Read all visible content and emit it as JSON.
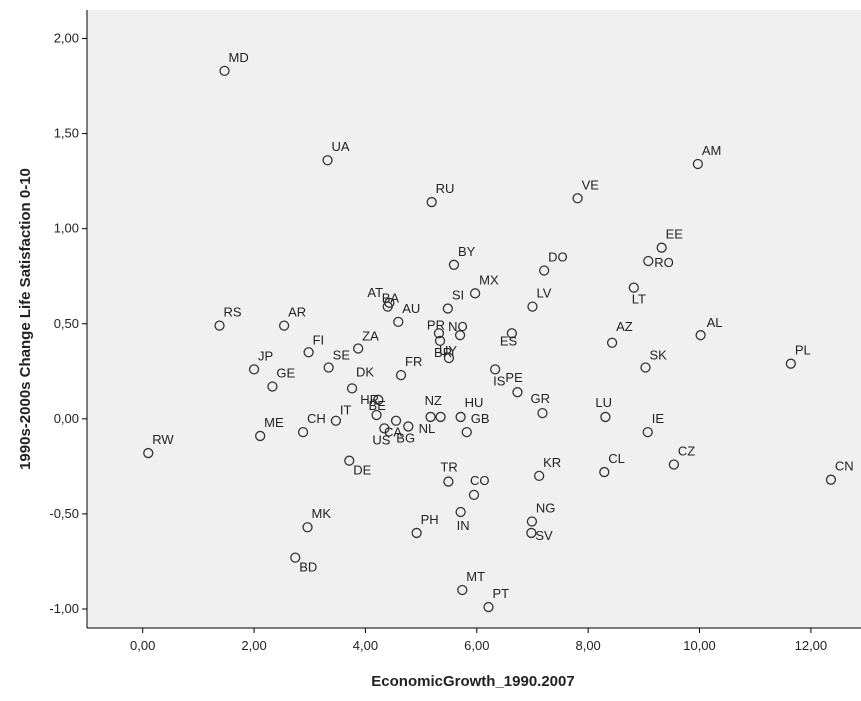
{
  "chart_data": {
    "type": "scatter",
    "xlabel": "EconomicGrowth_1990.2007",
    "ylabel": "1990s-2000s Change Life Satisfaction 0-10",
    "xlim": [
      -1.0,
      12.9
    ],
    "ylim": [
      -1.1,
      2.15
    ],
    "x_ticks": [
      0,
      2,
      4,
      6,
      8,
      10,
      12
    ],
    "x_tick_labels": [
      "0,00",
      "2,00",
      "4,00",
      "6,00",
      "8,00",
      "10,00",
      "12,00"
    ],
    "y_ticks": [
      -1,
      -0.5,
      0,
      0.5,
      1,
      1.5,
      2
    ],
    "y_tick_labels": [
      "-1,00",
      "-0,50",
      "0,00",
      "0,50",
      "1,00",
      "1,50",
      "2,00"
    ],
    "grid": false,
    "colors": {
      "plot_background": "#f0f0f0",
      "marker_stroke": "#333333",
      "axis": "#000000"
    },
    "points": [
      {
        "label": "MD",
        "x": 1.47,
        "y": 1.83
      },
      {
        "label": "UA",
        "x": 3.32,
        "y": 1.36
      },
      {
        "label": "RU",
        "x": 5.19,
        "y": 1.14
      },
      {
        "label": "VE",
        "x": 7.81,
        "y": 1.16
      },
      {
        "label": "AM",
        "x": 9.97,
        "y": 1.34
      },
      {
        "label": "BY",
        "x": 5.59,
        "y": 0.81
      },
      {
        "label": "DO",
        "x": 7.21,
        "y": 0.78
      },
      {
        "label": "EE",
        "x": 9.32,
        "y": 0.9
      },
      {
        "label": "RO",
        "x": 9.08,
        "y": 0.83
      },
      {
        "label": "MX",
        "x": 5.97,
        "y": 0.66
      },
      {
        "label": "LV",
        "x": 7.0,
        "y": 0.59
      },
      {
        "label": "LT",
        "x": 8.82,
        "y": 0.69
      },
      {
        "label": "AT",
        "x": 4.43,
        "y": 0.61
      },
      {
        "label": "BA",
        "x": 4.4,
        "y": 0.59
      },
      {
        "label": "SI",
        "x": 5.48,
        "y": 0.58
      },
      {
        "label": "RS",
        "x": 1.38,
        "y": 0.49
      },
      {
        "label": "AR",
        "x": 2.54,
        "y": 0.49
      },
      {
        "label": "AU",
        "x": 4.59,
        "y": 0.51
      },
      {
        "label": "PR",
        "x": 5.32,
        "y": 0.45
      },
      {
        "label": "NO",
        "x": 5.7,
        "y": 0.44
      },
      {
        "label": "AZ",
        "x": 8.43,
        "y": 0.4
      },
      {
        "label": "AL",
        "x": 10.02,
        "y": 0.44
      },
      {
        "label": "ZA",
        "x": 3.87,
        "y": 0.37
      },
      {
        "label": "BR",
        "x": 5.34,
        "y": 0.41
      },
      {
        "label": "ES",
        "x": 6.63,
        "y": 0.45
      },
      {
        "label": "FI",
        "x": 2.98,
        "y": 0.35
      },
      {
        "label": "UY",
        "x": 5.5,
        "y": 0.32
      },
      {
        "label": "JP",
        "x": 2.0,
        "y": 0.26
      },
      {
        "label": "GE",
        "x": 2.33,
        "y": 0.17
      },
      {
        "label": "SE",
        "x": 3.34,
        "y": 0.27
      },
      {
        "label": "FR",
        "x": 4.64,
        "y": 0.23
      },
      {
        "label": "IS",
        "x": 6.33,
        "y": 0.26
      },
      {
        "label": "PE",
        "x": 6.73,
        "y": 0.14
      },
      {
        "label": "SK",
        "x": 9.03,
        "y": 0.27
      },
      {
        "label": "PL",
        "x": 11.64,
        "y": 0.29
      },
      {
        "label": "DK",
        "x": 3.76,
        "y": 0.16
      },
      {
        "label": "HR",
        "x": 4.23,
        "y": 0.1
      },
      {
        "label": "GR",
        "x": 7.18,
        "y": 0.03
      },
      {
        "label": "BE",
        "x": 4.2,
        "y": 0.02
      },
      {
        "label": "LU",
        "x": 8.31,
        "y": 0.01
      },
      {
        "label": "HU",
        "x": 5.71,
        "y": 0.01
      },
      {
        "label": "ME",
        "x": 2.11,
        "y": -0.09
      },
      {
        "label": "CH",
        "x": 2.88,
        "y": -0.07
      },
      {
        "label": "IT",
        "x": 3.47,
        "y": -0.01
      },
      {
        "label": "NZ",
        "x": 5.35,
        "y": 0.01
      },
      {
        "label": "US",
        "x": 4.34,
        "y": -0.05
      },
      {
        "label": "CA",
        "x": 4.55,
        "y": -0.01
      },
      {
        "label": "BG",
        "x": 4.77,
        "y": -0.04
      },
      {
        "label": "NL",
        "x": 5.17,
        "y": 0.01
      },
      {
        "label": "IE",
        "x": 9.07,
        "y": -0.07
      },
      {
        "label": "RW",
        "x": 0.1,
        "y": -0.18
      },
      {
        "label": "GB",
        "x": 5.82,
        "y": -0.07
      },
      {
        "label": "CZ",
        "x": 9.54,
        "y": -0.24
      },
      {
        "label": "CN",
        "x": 12.36,
        "y": -0.32
      },
      {
        "label": "DE",
        "x": 3.71,
        "y": -0.22
      },
      {
        "label": "KR",
        "x": 7.12,
        "y": -0.3
      },
      {
        "label": "CL",
        "x": 8.29,
        "y": -0.28
      },
      {
        "label": "TR",
        "x": 5.49,
        "y": -0.33
      },
      {
        "label": "CO",
        "x": 5.95,
        "y": -0.4
      },
      {
        "label": "MK",
        "x": 2.96,
        "y": -0.57
      },
      {
        "label": "PH",
        "x": 4.92,
        "y": -0.6
      },
      {
        "label": "IN",
        "x": 5.71,
        "y": -0.49
      },
      {
        "label": "NG",
        "x": 6.99,
        "y": -0.54
      },
      {
        "label": "SV",
        "x": 6.98,
        "y": -0.6
      },
      {
        "label": "BD",
        "x": 2.74,
        "y": -0.73
      },
      {
        "label": "MT",
        "x": 5.74,
        "y": -0.9
      },
      {
        "label": "PT",
        "x": 6.21,
        "y": -0.99
      }
    ]
  }
}
